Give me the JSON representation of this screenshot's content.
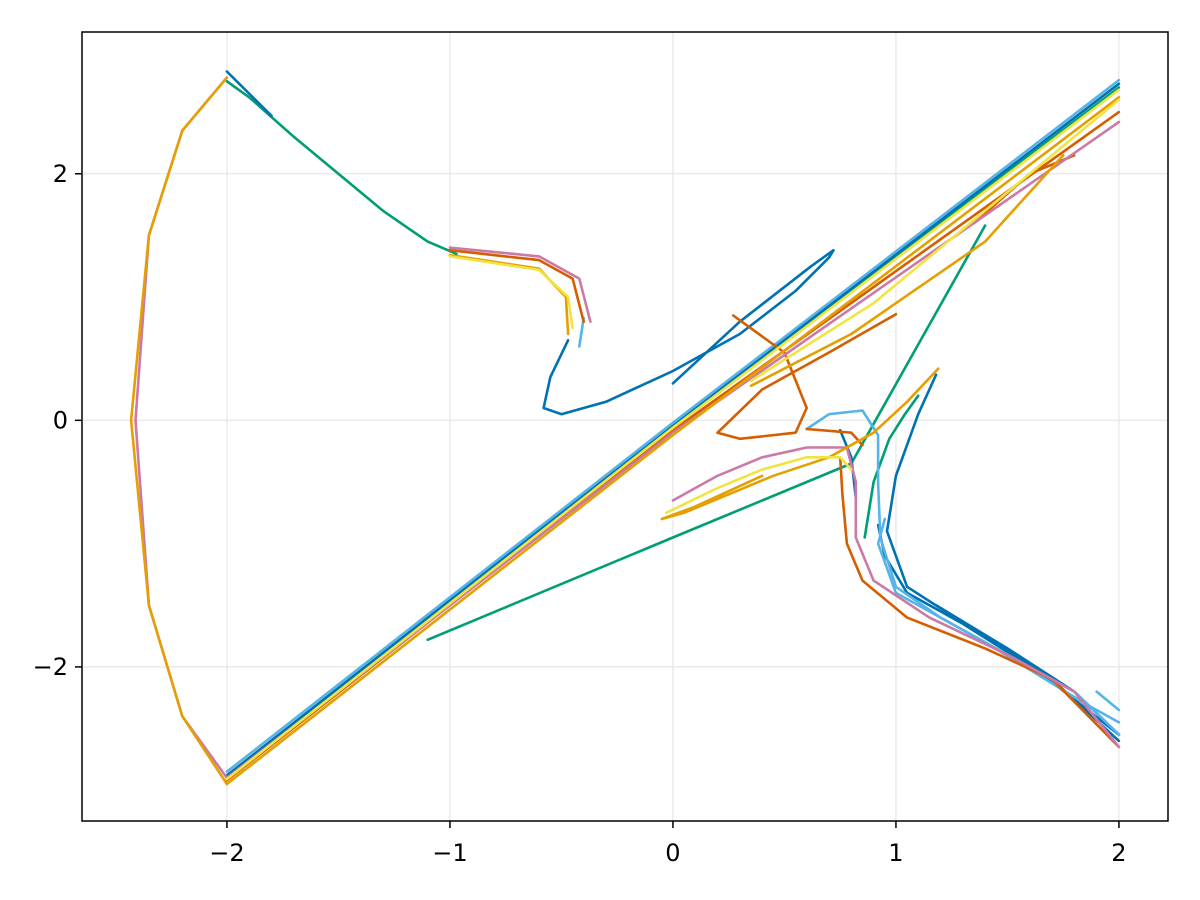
{
  "chart_data": {
    "type": "line",
    "title": "",
    "xlabel": "",
    "ylabel": "",
    "xlim": [
      -2.65,
      2.22
    ],
    "ylim": [
      -3.25,
      3.15
    ],
    "grid": true,
    "legend": "none",
    "x_ticks": [
      {
        "value": -2,
        "label": "−2"
      },
      {
        "value": -1,
        "label": "−1"
      },
      {
        "value": 0,
        "label": "0"
      },
      {
        "value": 1,
        "label": "1"
      },
      {
        "value": 2,
        "label": "2"
      }
    ],
    "y_ticks": [
      {
        "value": -2,
        "label": "−2"
      },
      {
        "value": 0,
        "label": "0"
      },
      {
        "value": 2,
        "label": "2"
      }
    ],
    "series": [
      {
        "color": "#009e73",
        "segments": [
          [
            [
              -2,
              2.75
            ],
            [
              -1.9,
              2.62
            ],
            [
              -1.7,
              2.3
            ],
            [
              -1.5,
              2.0
            ],
            [
              -1.3,
              1.7
            ],
            [
              -1.1,
              1.45
            ],
            [
              -0.97,
              1.35
            ]
          ],
          [
            [
              -1.1,
              -1.78
            ],
            [
              0.0,
              -0.95
            ],
            [
              0.8,
              -0.35
            ],
            [
              1.4,
              1.58
            ]
          ],
          [
            [
              0.86,
              -0.95
            ],
            [
              0.9,
              -0.5
            ],
            [
              0.97,
              -0.15
            ],
            [
              1.04,
              0.05
            ],
            [
              1.1,
              0.2
            ]
          ],
          [
            [
              -2,
              -2.9
            ],
            [
              0.0,
              -0.05
            ],
            [
              2,
              2.7
            ]
          ]
        ]
      },
      {
        "color": "#0072b2",
        "segments": [
          [
            [
              -2,
              2.83
            ],
            [
              -1.8,
              2.47
            ]
          ],
          [
            [
              -0.47,
              0.65
            ],
            [
              -0.55,
              0.35
            ],
            [
              -0.58,
              0.1
            ],
            [
              -0.5,
              0.05
            ],
            [
              -0.3,
              0.15
            ],
            [
              0.0,
              0.4
            ],
            [
              0.3,
              0.7
            ],
            [
              0.55,
              1.05
            ],
            [
              0.7,
              1.32
            ],
            [
              0.72,
              1.38
            ],
            [
              0.62,
              1.25
            ],
            [
              0.3,
              0.8
            ],
            [
              0.0,
              0.3
            ]
          ],
          [
            [
              0.82,
              -0.63
            ],
            [
              0.8,
              -0.3
            ],
            [
              0.75,
              -0.08
            ]
          ],
          [
            [
              1.18,
              -1.5
            ],
            [
              1.5,
              -1.85
            ],
            [
              1.8,
              -2.2
            ],
            [
              2.0,
              -2.55
            ]
          ],
          [
            [
              0.92,
              -0.85
            ],
            [
              0.95,
              -1.1
            ],
            [
              1.05,
              -1.4
            ],
            [
              1.3,
              -1.65
            ],
            [
              1.65,
              -2.05
            ],
            [
              2.0,
              -2.55
            ]
          ],
          [
            [
              1.18,
              0.37
            ],
            [
              1.1,
              0.05
            ],
            [
              1.0,
              -0.45
            ],
            [
              0.96,
              -0.9
            ],
            [
              1.05,
              -1.35
            ],
            [
              1.35,
              -1.7
            ],
            [
              1.7,
              -2.1
            ],
            [
              2.0,
              -2.6
            ]
          ],
          [
            [
              -2,
              -2.88
            ],
            [
              0.0,
              -0.04
            ],
            [
              2,
              2.73
            ]
          ]
        ]
      },
      {
        "color": "#56b4e9",
        "segments": [
          [
            [
              -0.4,
              0.83
            ],
            [
              -0.42,
              0.6
            ]
          ],
          [
            [
              0.6,
              -0.07
            ],
            [
              0.7,
              0.05
            ],
            [
              0.85,
              0.08
            ],
            [
              0.92,
              -0.12
            ],
            [
              0.92,
              -0.5
            ],
            [
              0.93,
              -0.95
            ],
            [
              1.0,
              -1.35
            ],
            [
              1.2,
              -1.6
            ],
            [
              1.5,
              -1.9
            ],
            [
              1.8,
              -2.2
            ],
            [
              2.0,
              -2.55
            ]
          ],
          [
            [
              0.95,
              -0.8
            ],
            [
              0.92,
              -1.0
            ],
            [
              1.0,
              -1.4
            ],
            [
              1.4,
              -1.8
            ],
            [
              1.85,
              -2.3
            ],
            [
              2.0,
              -2.45
            ]
          ],
          [
            [
              1.9,
              -2.2
            ],
            [
              2.0,
              -2.35
            ]
          ],
          [
            [
              -2,
              -2.85
            ],
            [
              0.0,
              -0.02
            ],
            [
              2,
              2.76
            ]
          ]
        ]
      },
      {
        "color": "#d55e00",
        "segments": [
          [
            [
              -1,
              1.38
            ],
            [
              -0.6,
              1.3
            ],
            [
              -0.45,
              1.15
            ],
            [
              -0.4,
              0.8
            ]
          ],
          [
            [
              0.27,
              0.85
            ],
            [
              0.5,
              0.55
            ],
            [
              0.6,
              0.1
            ],
            [
              0.55,
              -0.1
            ],
            [
              0.3,
              -0.15
            ],
            [
              0.2,
              -0.1
            ],
            [
              0.4,
              0.25
            ],
            [
              0.7,
              0.55
            ],
            [
              1.0,
              0.86
            ]
          ],
          [
            [
              0.6,
              -0.07
            ],
            [
              0.8,
              -0.1
            ],
            [
              0.85,
              -0.2
            ]
          ],
          [
            [
              0.75,
              -0.3
            ],
            [
              0.76,
              -0.6
            ],
            [
              0.78,
              -1.0
            ],
            [
              0.85,
              -1.3
            ],
            [
              1.05,
              -1.6
            ],
            [
              1.4,
              -1.85
            ],
            [
              1.7,
              -2.1
            ],
            [
              2.0,
              -2.65
            ]
          ],
          [
            [
              1.35,
              1.6
            ],
            [
              1.6,
              2.0
            ],
            [
              1.8,
              2.15
            ]
          ],
          [
            [
              -2,
              -2.92
            ],
            [
              0.0,
              -0.08
            ],
            [
              2,
              2.5
            ]
          ]
        ]
      },
      {
        "color": "#cc79a7",
        "segments": [
          [
            [
              -2,
              2.78
            ],
            [
              -2.2,
              2.35
            ],
            [
              -2.35,
              1.5
            ],
            [
              -2.41,
              0.0
            ],
            [
              -2.35,
              -1.5
            ],
            [
              -2.2,
              -2.4
            ],
            [
              -2,
              -2.9
            ]
          ],
          [
            [
              -1,
              1.4
            ],
            [
              -0.6,
              1.33
            ],
            [
              -0.42,
              1.15
            ],
            [
              -0.37,
              0.8
            ]
          ],
          [
            [
              0.0,
              -0.65
            ],
            [
              0.2,
              -0.45
            ],
            [
              0.4,
              -0.3
            ],
            [
              0.6,
              -0.22
            ],
            [
              0.78,
              -0.22
            ],
            [
              0.82,
              -0.5
            ],
            [
              0.82,
              -0.95
            ],
            [
              0.9,
              -1.3
            ],
            [
              1.15,
              -1.6
            ],
            [
              1.5,
              -1.9
            ],
            [
              1.8,
              -2.2
            ],
            [
              2.0,
              -2.65
            ]
          ],
          [
            [
              -2,
              -2.9
            ],
            [
              0.0,
              -0.1
            ],
            [
              2,
              2.42
            ]
          ]
        ]
      },
      {
        "color": "#e69f00",
        "segments": [
          [
            [
              -2,
              2.78
            ],
            [
              -2.2,
              2.35
            ],
            [
              -2.35,
              1.5
            ],
            [
              -2.43,
              0.0
            ],
            [
              -2.35,
              -1.5
            ],
            [
              -2.2,
              -2.4
            ],
            [
              -2,
              -2.95
            ]
          ],
          [
            [
              -1,
              1.34
            ],
            [
              -0.6,
              1.23
            ],
            [
              -0.48,
              1.0
            ],
            [
              -0.47,
              0.7
            ]
          ],
          [
            [
              1.19,
              0.42
            ],
            [
              1.05,
              0.15
            ],
            [
              0.9,
              -0.1
            ],
            [
              0.7,
              -0.3
            ],
            [
              0.45,
              -0.45
            ],
            [
              0.25,
              -0.6
            ],
            [
              0.05,
              -0.75
            ],
            [
              -0.05,
              -0.8
            ],
            [
              0.1,
              -0.7
            ],
            [
              0.4,
              -0.45
            ]
          ],
          [
            [
              0.35,
              0.28
            ],
            [
              0.8,
              0.7
            ],
            [
              1.4,
              1.45
            ],
            [
              1.75,
              2.15
            ]
          ],
          [
            [
              -2,
              -2.95
            ],
            [
              0.0,
              -0.12
            ],
            [
              2,
              2.62
            ]
          ]
        ]
      },
      {
        "color": "#f0e442",
        "segments": [
          [
            [
              -1,
              1.33
            ],
            [
              -0.6,
              1.22
            ],
            [
              -0.47,
              1.0
            ],
            [
              -0.45,
              0.75
            ]
          ],
          [
            [
              -0.03,
              -0.75
            ],
            [
              0.2,
              -0.55
            ],
            [
              0.4,
              -0.4
            ],
            [
              0.6,
              -0.3
            ],
            [
              0.75,
              -0.3
            ],
            [
              0.8,
              -0.4
            ]
          ],
          [
            [
              0.35,
              0.32
            ],
            [
              0.9,
              0.95
            ],
            [
              1.5,
              1.85
            ],
            [
              2.0,
              2.6
            ]
          ],
          [
            [
              -2,
              -2.91
            ],
            [
              0.0,
              -0.06
            ],
            [
              2,
              2.68
            ]
          ]
        ]
      }
    ]
  }
}
